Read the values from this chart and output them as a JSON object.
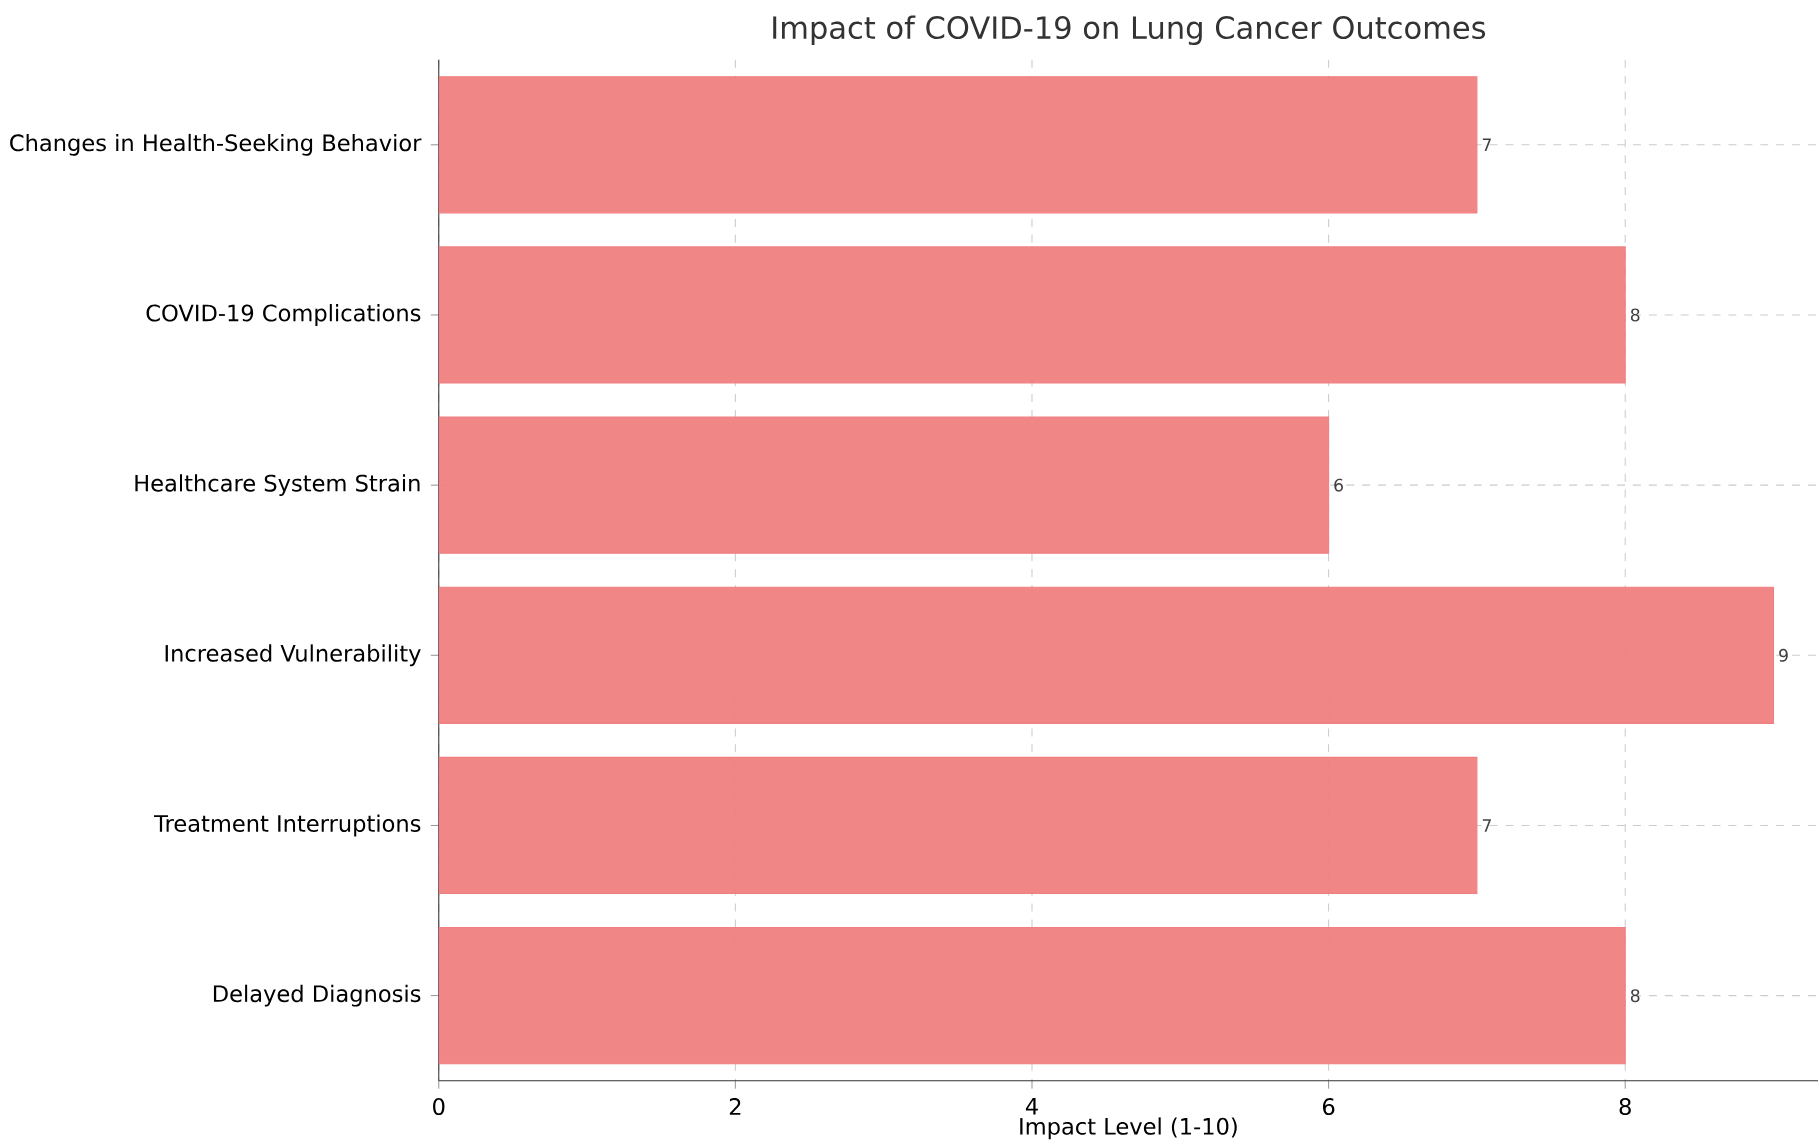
{
  "chart_data": {
    "type": "bar",
    "orientation": "horizontal",
    "title": "Impact of COVID-19 on Lung Cancer Outcomes",
    "xlabel": "Impact Level (1-10)",
    "categories": [
      "Changes in Health-Seeking Behavior",
      "COVID-19 Complications",
      "Healthcare System Strain",
      "Increased Vulnerability",
      "Treatment Interruptions",
      "Delayed Diagnosis"
    ],
    "values": [
      7,
      8,
      6,
      9,
      7,
      8
    ],
    "color": "#f08080",
    "xlim": [
      0,
      9.3
    ],
    "xticks": [
      0,
      2,
      4,
      6,
      8
    ],
    "grid": true,
    "data_labels": true
  }
}
